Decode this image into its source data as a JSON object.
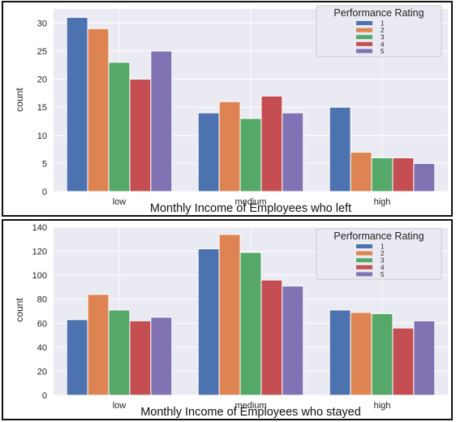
{
  "chart_data": [
    {
      "type": "bar",
      "xlabel": "Monthly Income of Employees who left",
      "ylabel": "count",
      "categories": [
        "low",
        "medium",
        "high"
      ],
      "yticks": [
        0,
        5,
        10,
        15,
        20,
        25,
        30
      ],
      "ylim": [
        0,
        32.5
      ],
      "legend": {
        "title": "Performance Rating",
        "position": "top-right"
      },
      "grid": true,
      "series": [
        {
          "name": "1",
          "color": "#4c72b0",
          "values": [
            31,
            14,
            15
          ]
        },
        {
          "name": "2",
          "color": "#dd8452",
          "values": [
            29,
            16,
            7
          ]
        },
        {
          "name": "3",
          "color": "#55a868",
          "values": [
            23,
            13,
            6
          ]
        },
        {
          "name": "4",
          "color": "#c44e52",
          "values": [
            20,
            17,
            6
          ]
        },
        {
          "name": "5",
          "color": "#8172b3",
          "values": [
            25,
            14,
            5
          ]
        }
      ]
    },
    {
      "type": "bar",
      "xlabel": "Monthly Income of Employees who stayed",
      "ylabel": "count",
      "categories": [
        "low",
        "medium",
        "high"
      ],
      "yticks": [
        0,
        20,
        40,
        60,
        80,
        100,
        120,
        140
      ],
      "ylim": [
        0,
        140
      ],
      "legend": {
        "title": "Performance Rating",
        "position": "top-right"
      },
      "grid": true,
      "series": [
        {
          "name": "1",
          "color": "#4c72b0",
          "values": [
            63,
            122,
            71
          ]
        },
        {
          "name": "2",
          "color": "#dd8452",
          "values": [
            84,
            134,
            69
          ]
        },
        {
          "name": "3",
          "color": "#55a868",
          "values": [
            71,
            119,
            68
          ]
        },
        {
          "name": "4",
          "color": "#c44e52",
          "values": [
            62,
            96,
            56
          ]
        },
        {
          "name": "5",
          "color": "#8172b3",
          "values": [
            65,
            91,
            62
          ]
        }
      ]
    }
  ]
}
